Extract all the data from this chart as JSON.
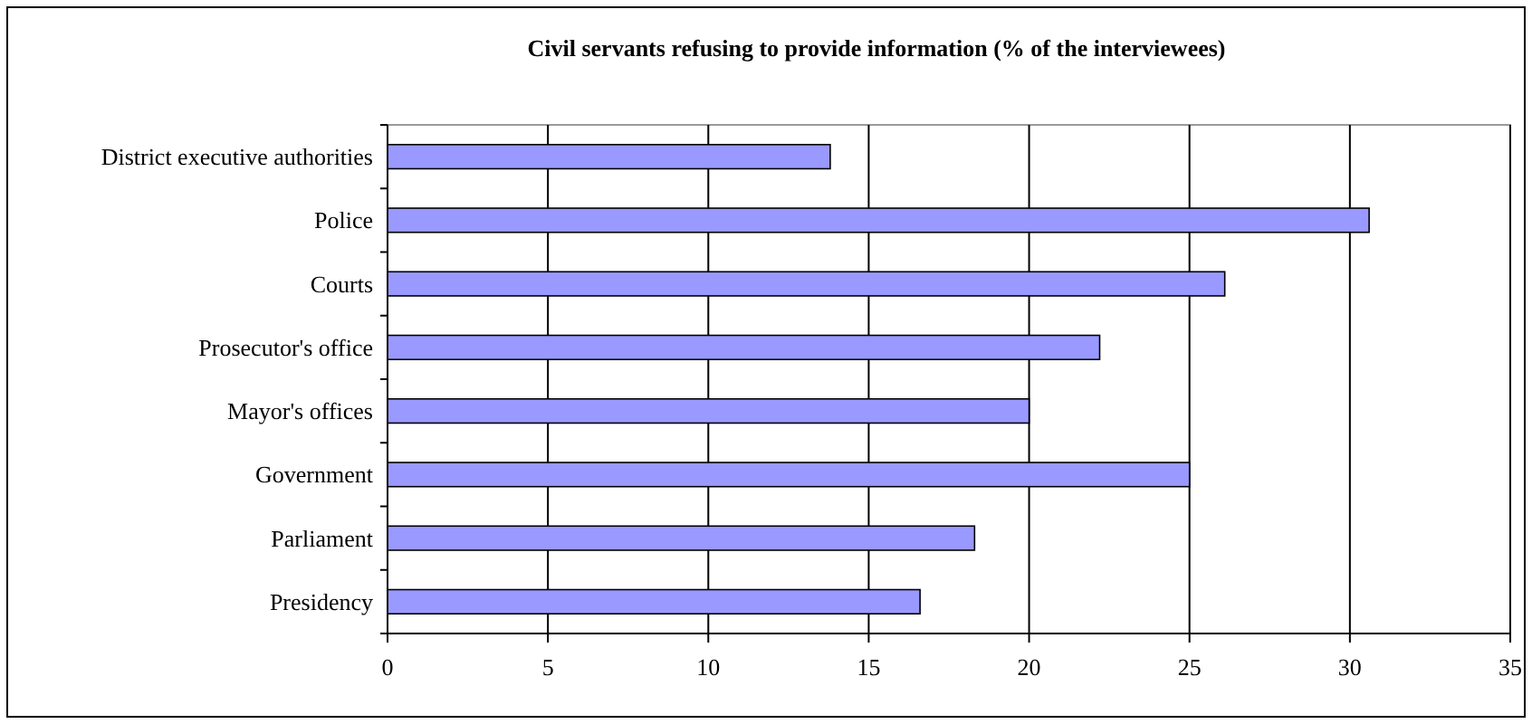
{
  "chart_data": {
    "type": "bar",
    "orientation": "horizontal",
    "title": "Civil servants refusing to provide information (% of the interviewees)",
    "categories": [
      "District executive authorities",
      "Police",
      "Courts",
      "Prosecutor's office",
      "Mayor's offices",
      "Government",
      "Parliament",
      "Presidency"
    ],
    "values": [
      13.8,
      30.6,
      26.1,
      22.2,
      20.0,
      25.0,
      18.3,
      16.6
    ],
    "color": "#9999ff",
    "xlim": [
      0,
      35
    ],
    "xticks": [
      0,
      5,
      10,
      15,
      20,
      25,
      30,
      35
    ],
    "grid": "x"
  }
}
